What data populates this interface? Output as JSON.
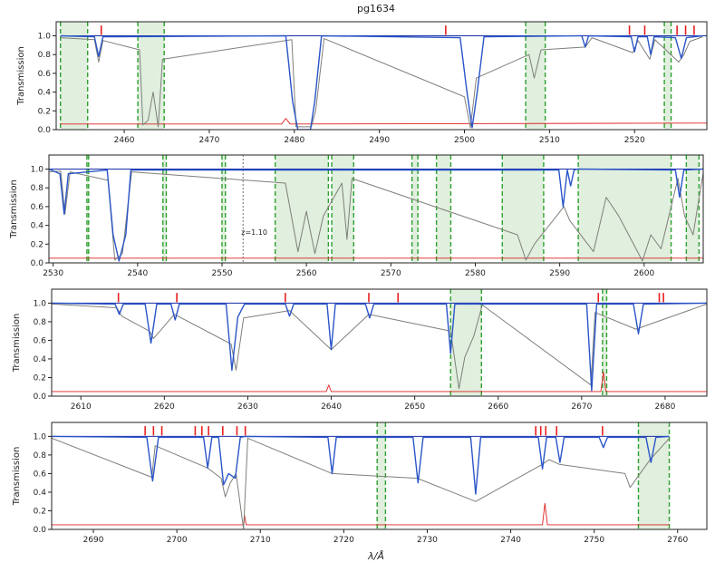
{
  "figure": {
    "title": "pg1634",
    "xlabel": "λ/Å",
    "ylabel": "Transmission"
  },
  "colors": {
    "data": "#7f7f7a",
    "model": "#2a55c8",
    "continuum": "#1a2ea8",
    "error": "#e02020",
    "tick_marks": "#e82020",
    "region_fill": "#d6ead3",
    "region_edge": "#2ca02c",
    "annotation": "#888888"
  },
  "chart_data": [
    {
      "type": "line",
      "panel": 1,
      "xlim": [
        2452,
        2528.5
      ],
      "ylim": [
        0,
        1.15
      ],
      "xticks": [
        2460,
        2470,
        2480,
        2490,
        2500,
        2510,
        2520
      ],
      "yticks": [
        0.0,
        0.2,
        0.4,
        0.6,
        0.8,
        1.0
      ],
      "ytick_labels": [
        "0.0",
        "0.2",
        "0.4",
        "0.6",
        "0.8",
        "1.0"
      ],
      "shaded_regions": [
        [
          2452.5,
          2455.7
        ],
        [
          2461.6,
          2464.7
        ],
        [
          2507.2,
          2509.5
        ],
        [
          2523.5,
          2524.3
        ]
      ],
      "series": [
        {
          "role": "data",
          "x": [
            2452.5,
            2456.5,
            2457,
            2457.5,
            2461.8,
            2462.2,
            2462.8,
            2463.4,
            2464,
            2464.5,
            2479.7,
            2480.2,
            2482,
            2482.5,
            2483.5,
            2500,
            2500.7,
            2501.4,
            2507.6,
            2508.2,
            2509,
            2514.2,
            2515,
            2519.8,
            2520.4,
            2521.8,
            2522.4,
            2525.2,
            2525.8,
            2526.5,
            2528
          ],
          "y": [
            0.98,
            0.96,
            0.72,
            0.95,
            0.85,
            0.05,
            0.1,
            0.4,
            0.03,
            0.75,
            0.96,
            0.03,
            0.03,
            0.2,
            0.97,
            0.35,
            0.02,
            0.55,
            0.8,
            0.55,
            0.85,
            0.88,
            0.98,
            0.82,
            0.95,
            0.75,
            0.96,
            0.72,
            0.8,
            0.94,
            0.99
          ]
        },
        {
          "role": "model",
          "x": [
            2452.5,
            2456.5,
            2457,
            2457.5,
            2479,
            2479.8,
            2480.4,
            2481.9,
            2482.4,
            2483.2,
            2499.5,
            2500.3,
            2500.9,
            2501.5,
            2502.3,
            2513.8,
            2514.2,
            2514.6,
            2519.6,
            2520,
            2520.4,
            2521.5,
            2521.9,
            2522.3,
            2524.8,
            2525.5,
            2526.1,
            2528
          ],
          "y": [
            1.0,
            0.99,
            0.78,
            0.99,
            1.0,
            0.3,
            0.0,
            0.0,
            0.3,
            1.0,
            0.98,
            0.4,
            0.02,
            0.4,
            0.99,
            1.0,
            0.88,
            1.0,
            0.99,
            0.83,
            0.99,
            0.99,
            0.8,
            0.99,
            0.98,
            0.76,
            0.98,
            1.0
          ]
        },
        {
          "role": "continuum",
          "x": [
            2452.5,
            2528.5
          ],
          "y": [
            1.0,
            1.0
          ]
        },
        {
          "role": "error",
          "x": [
            2452.5,
            2478.5,
            2479,
            2479.5,
            2528.5
          ],
          "y": [
            0.06,
            0.06,
            0.12,
            0.06,
            0.07
          ]
        }
      ],
      "marker_positions": [
        2457.3,
        2497.8,
        2519.4,
        2521.2,
        2525,
        2526,
        2527
      ]
    },
    {
      "type": "line",
      "panel": 2,
      "xlim": [
        2529.5,
        2607
      ],
      "ylim": [
        0,
        1.15
      ],
      "xticks": [
        2530,
        2540,
        2550,
        2560,
        2570,
        2580,
        2590,
        2600
      ],
      "yticks": [
        0.0,
        0.2,
        0.4,
        0.6,
        0.8,
        1.0
      ],
      "ytick_labels": [
        "0.0",
        "0.2",
        "0.4",
        "0.6",
        "0.8",
        "1.0"
      ],
      "shaded_regions": [
        [
          2534,
          2534.2
        ],
        [
          2543,
          2543.4
        ],
        [
          2550,
          2550.4
        ],
        [
          2556.3,
          2562.6
        ],
        [
          2563,
          2565.6
        ],
        [
          2572.5,
          2573.2
        ],
        [
          2575.4,
          2577.1
        ],
        [
          2583.2,
          2588.1
        ],
        [
          2592.2,
          2603.2
        ],
        [
          2605,
          2606.5
        ]
      ],
      "series": [
        {
          "role": "data",
          "x": [
            2529.5,
            2530.9,
            2531.4,
            2532,
            2536.5,
            2537.3,
            2538.2,
            2539.3,
            2557.5,
            2559,
            2560,
            2561,
            2562,
            2564.2,
            2564.8,
            2565.4,
            2585,
            2586,
            2587,
            2590.5,
            2591.2,
            2594,
            2595.5,
            2597,
            2599.8,
            2600.8,
            2602,
            2604,
            2604.8,
            2605.8,
            2607
          ],
          "y": [
            0.97,
            0.98,
            0.52,
            0.97,
            0.88,
            0.03,
            0.1,
            0.97,
            0.85,
            0.12,
            0.55,
            0.1,
            0.5,
            0.85,
            0.25,
            0.9,
            0.3,
            0.03,
            0.2,
            0.6,
            0.45,
            0.12,
            0.7,
            0.5,
            0.02,
            0.3,
            0.15,
            0.9,
            0.5,
            0.3,
            0.96
          ]
        },
        {
          "role": "model",
          "x": [
            2529.5,
            2530.8,
            2531.3,
            2531.8,
            2536.4,
            2537.1,
            2537.8,
            2538.6,
            2539.2,
            2589.9,
            2590.4,
            2590.9,
            2591.3,
            2591.7,
            2592.1,
            2603.7,
            2604.2,
            2604.7,
            2607
          ],
          "y": [
            1.0,
            0.95,
            0.52,
            0.95,
            0.99,
            0.3,
            0.02,
            0.3,
            0.99,
            0.99,
            0.6,
            0.99,
            0.82,
            0.99,
            1.0,
            0.99,
            0.7,
            0.99,
            1.0
          ]
        },
        {
          "role": "continuum",
          "x": [
            2529.5,
            2607
          ],
          "y": [
            1.0,
            1.0
          ]
        },
        {
          "role": "error",
          "x": [
            2529.5,
            2607
          ],
          "y": [
            0.05,
            0.05
          ]
        }
      ],
      "redshift_marker": {
        "x": 2552.5,
        "label": "z=1.10",
        "label_y": 0.3
      }
    },
    {
      "type": "line",
      "panel": 3,
      "xlim": [
        2606.5,
        2685
      ],
      "ylim": [
        0,
        1.15
      ],
      "xticks": [
        2610,
        2620,
        2630,
        2640,
        2650,
        2660,
        2670,
        2680
      ],
      "yticks": [
        0.0,
        0.2,
        0.4,
        0.6,
        0.8,
        1.0
      ],
      "ytick_labels": [
        "0.0",
        "0.2",
        "0.4",
        "0.6",
        "0.8",
        "1.0"
      ],
      "shaded_regions": [
        [
          2654.3,
          2658
        ],
        [
          2672.5,
          2673
        ]
      ],
      "series": [
        {
          "role": "data",
          "x": [
            2606.5,
            2614.3,
            2614.9,
            2618.2,
            2618.7,
            2621.2,
            2628,
            2628.6,
            2629.5,
            2635,
            2640,
            2644.5,
            2654.3,
            2655.3,
            2656,
            2657.1,
            2658.1,
            2671.1,
            2671.6,
            2676.5,
            2685
          ],
          "y": [
            0.99,
            0.95,
            0.86,
            0.7,
            0.62,
            0.88,
            0.56,
            0.28,
            0.84,
            0.92,
            0.5,
            0.88,
            0.7,
            0.08,
            0.42,
            0.65,
            0.98,
            0.12,
            0.9,
            0.72,
            0.99
          ]
        },
        {
          "role": "model",
          "x": [
            2606.5,
            2614.1,
            2614.6,
            2615.1,
            2617.7,
            2618.4,
            2619.1,
            2620.8,
            2621.3,
            2621.8,
            2627.4,
            2628.1,
            2628.8,
            2629.6,
            2634.5,
            2635,
            2635.5,
            2639.5,
            2640,
            2640.5,
            2644.1,
            2644.6,
            2645.1,
            2653.8,
            2654.3,
            2654.8,
            2670.6,
            2671.2,
            2671.8,
            2676.2,
            2676.8,
            2677.4,
            2685
          ],
          "y": [
            1.0,
            0.99,
            0.88,
            0.99,
            0.99,
            0.57,
            0.99,
            0.99,
            0.82,
            0.99,
            0.99,
            0.28,
            0.85,
            0.99,
            0.99,
            0.86,
            0.99,
            0.99,
            0.5,
            0.99,
            0.99,
            0.84,
            0.99,
            0.99,
            0.46,
            0.99,
            0.99,
            0.06,
            0.99,
            0.99,
            0.67,
            0.99,
            1.0
          ]
        },
        {
          "role": "continuum",
          "x": [
            2606.5,
            2685
          ],
          "y": [
            1.0,
            1.0
          ]
        },
        {
          "role": "error",
          "x": [
            2606.5,
            2639.4,
            2639.7,
            2640,
            2672.3,
            2672.6,
            2672.9,
            2685
          ],
          "y": [
            0.05,
            0.05,
            0.12,
            0.05,
            0.05,
            0.26,
            0.05,
            0.05
          ]
        }
      ],
      "marker_positions": [
        2614.5,
        2621.5,
        2634.5,
        2644.5,
        2648,
        2672,
        2679.3,
        2679.8
      ]
    },
    {
      "type": "line",
      "panel": 4,
      "xlim": [
        2685,
        2763.5
      ],
      "ylim": [
        0,
        1.15
      ],
      "xticks": [
        2690,
        2700,
        2710,
        2720,
        2730,
        2740,
        2750,
        2760
      ],
      "yticks": [
        0.0,
        0.2,
        0.4,
        0.6,
        0.8,
        1.0
      ],
      "ytick_labels": [
        "0.0",
        "0.2",
        "0.4",
        "0.6",
        "0.8",
        "1.0"
      ],
      "shaded_regions": [
        [
          2724,
          2725
        ],
        [
          2755.3,
          2759
        ]
      ],
      "series": [
        {
          "role": "data",
          "x": [
            2685,
            2697,
            2697.4,
            2703.7,
            2705.3,
            2705.8,
            2706.4,
            2707.1,
            2708,
            2708.5,
            2718.6,
            2728.8,
            2735.8,
            2743.8,
            2744.6,
            2745.8,
            2753.7,
            2754.3,
            2756.7,
            2759
          ],
          "y": [
            0.98,
            0.56,
            0.9,
            0.66,
            0.55,
            0.35,
            0.5,
            0.6,
            0.0,
            0.98,
            0.6,
            0.55,
            0.3,
            0.7,
            0.75,
            0.7,
            0.6,
            0.45,
            0.75,
            0.98
          ]
        },
        {
          "role": "model",
          "x": [
            2685,
            2696.4,
            2697.1,
            2697.8,
            2703.2,
            2703.7,
            2704.2,
            2705,
            2705.6,
            2706.2,
            2707,
            2707.6,
            2708.2,
            2718.1,
            2718.6,
            2719.1,
            2728.3,
            2728.9,
            2729.5,
            2735.2,
            2735.8,
            2736.4,
            2743.3,
            2743.8,
            2744.3,
            2745.4,
            2745.9,
            2746.4,
            2750.6,
            2751.1,
            2751.6,
            2756.2,
            2756.8,
            2757.4,
            2759
          ],
          "y": [
            1.0,
            0.99,
            0.52,
            0.99,
            0.99,
            0.66,
            0.99,
            0.99,
            0.48,
            0.6,
            0.55,
            0.99,
            1.0,
            0.99,
            0.6,
            0.99,
            0.99,
            0.5,
            0.99,
            0.99,
            0.38,
            0.99,
            0.99,
            0.65,
            0.99,
            0.99,
            0.72,
            0.99,
            0.99,
            0.88,
            0.99,
            0.99,
            0.72,
            0.99,
            1.0
          ]
        },
        {
          "role": "continuum",
          "x": [
            2685,
            2759
          ],
          "y": [
            1.0,
            1.0
          ]
        },
        {
          "role": "error",
          "x": [
            2685,
            2708,
            2708.1,
            2708.3,
            2743.8,
            2744.1,
            2744.4,
            2759
          ],
          "y": [
            0.05,
            0.05,
            0.15,
            0.05,
            0.05,
            0.28,
            0.05,
            0.05
          ]
        }
      ],
      "marker_positions": [
        2696.2,
        2697.2,
        2698.2,
        2702.2,
        2703,
        2703.8,
        2705.5,
        2707.2,
        2708.2,
        2743,
        2743.6,
        2744.2,
        2745.5,
        2751
      ]
    }
  ]
}
